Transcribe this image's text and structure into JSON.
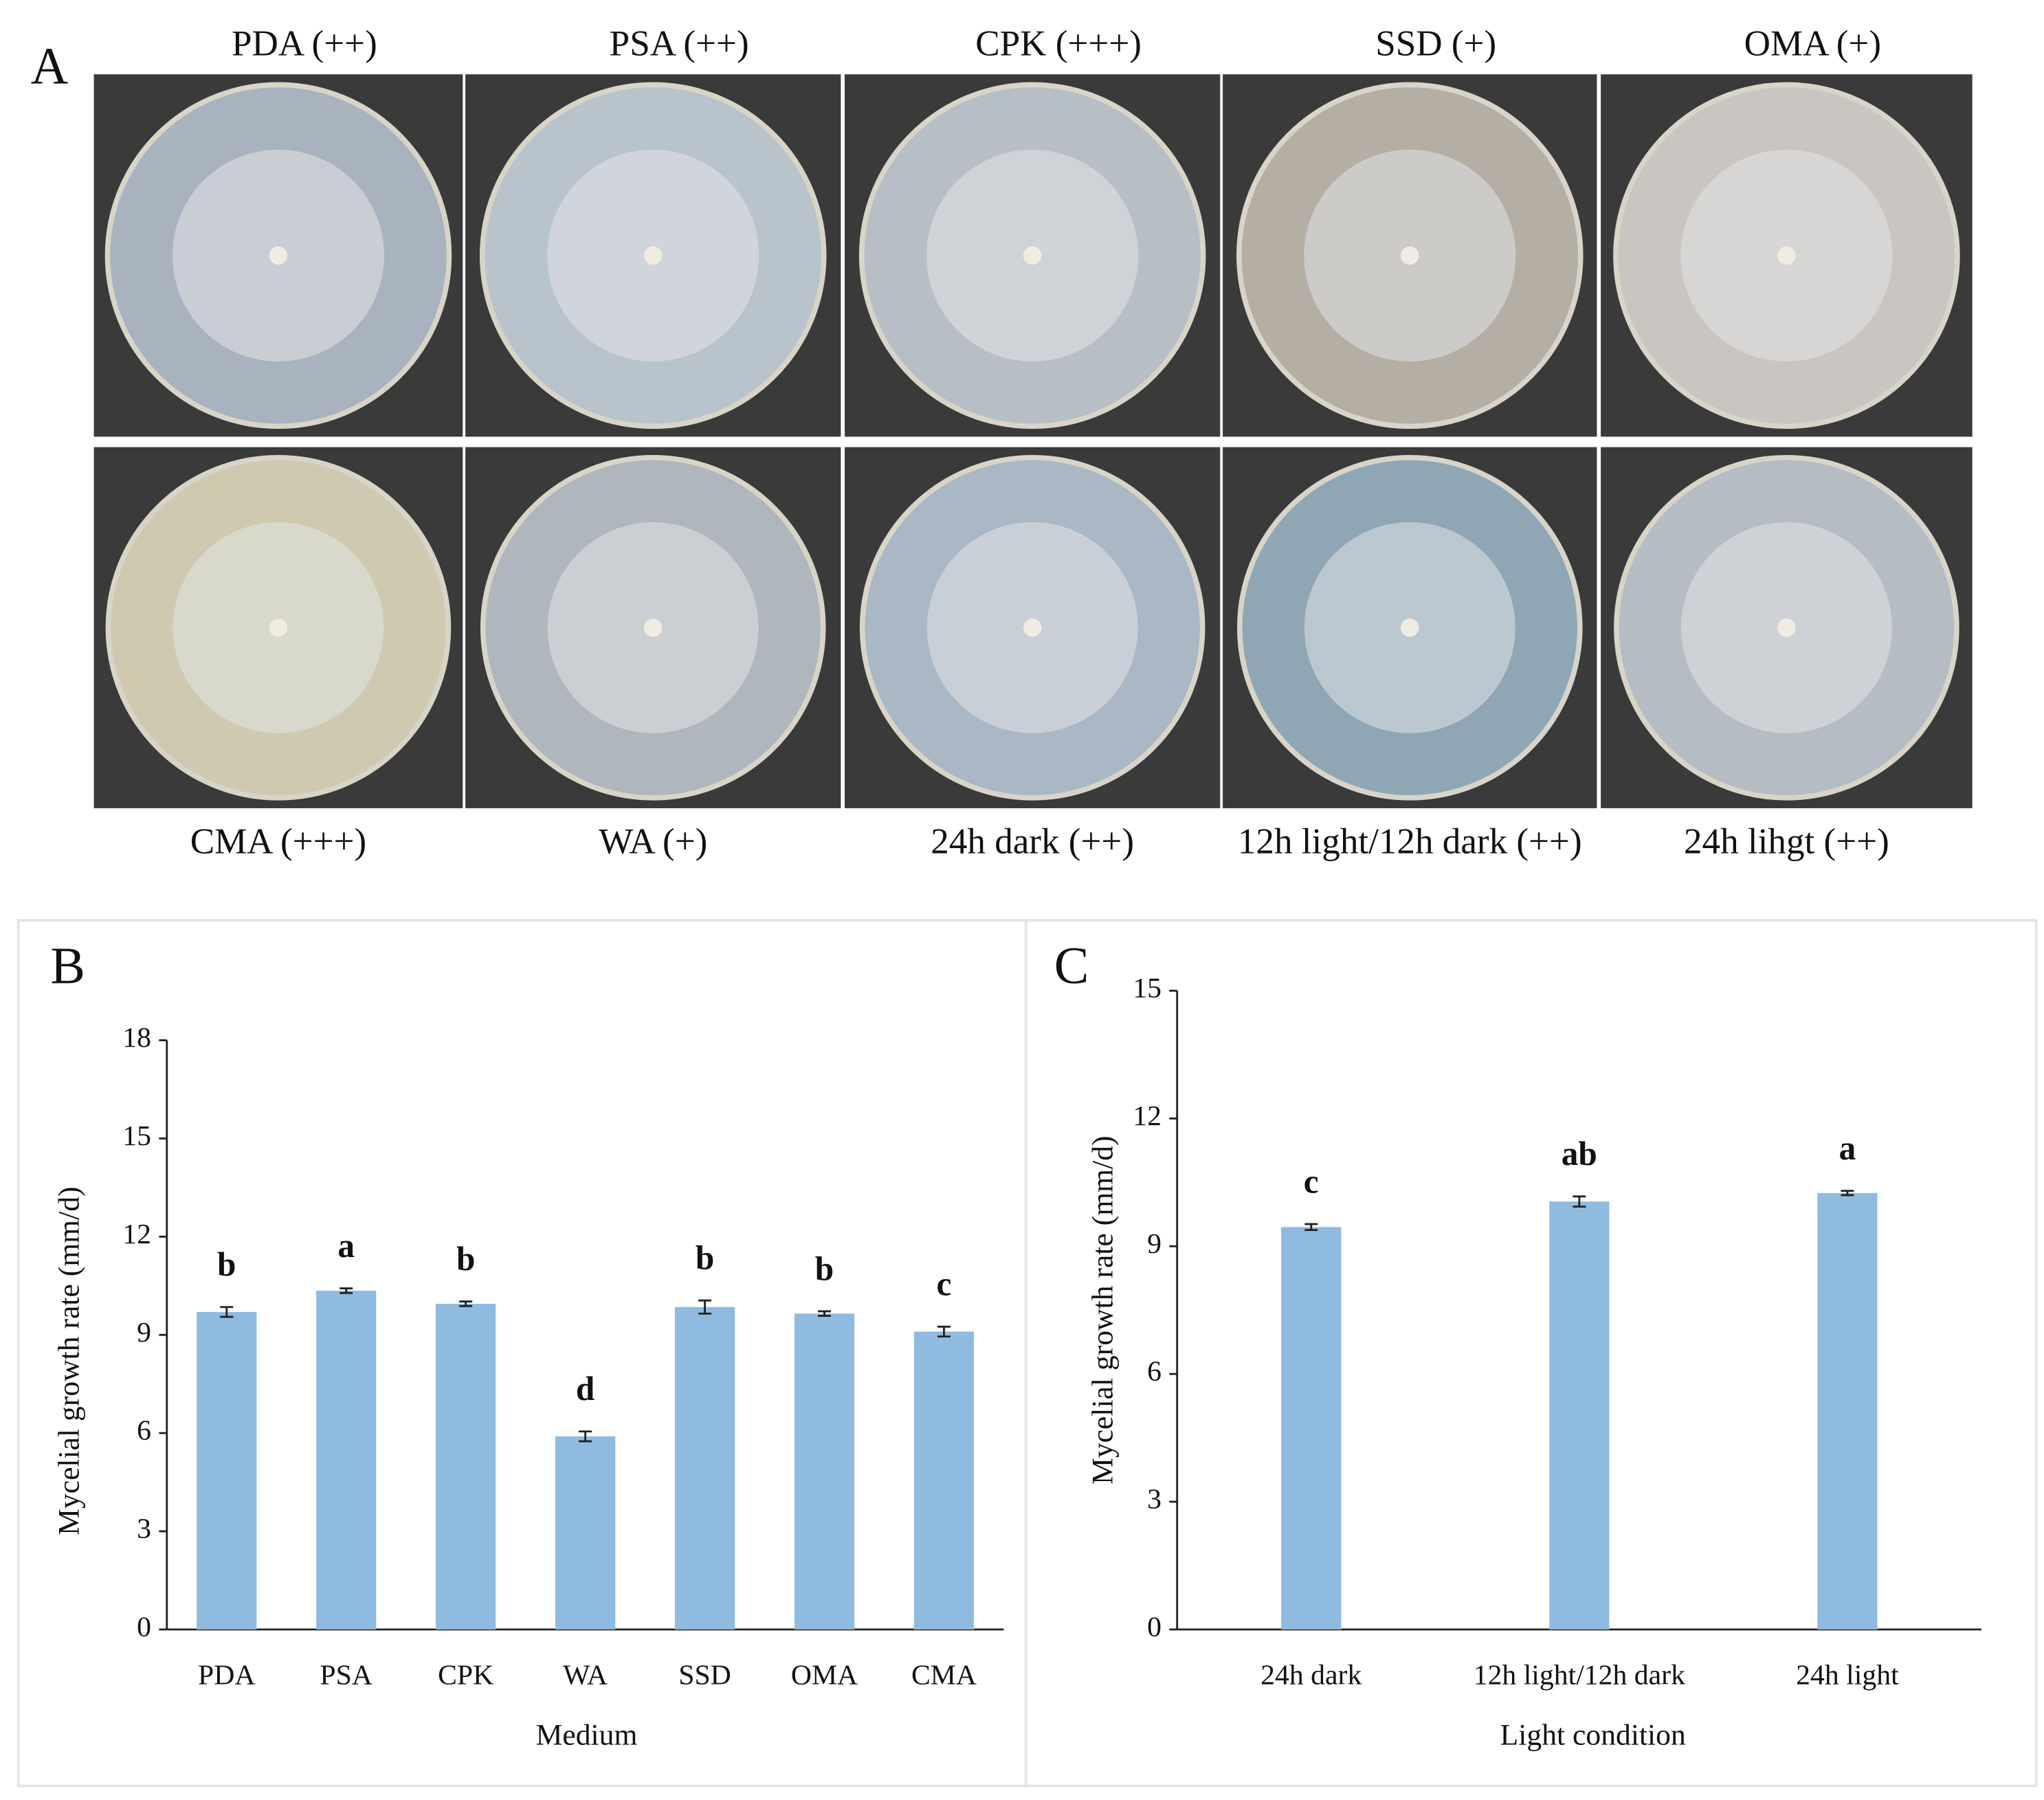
{
  "panel_a": {
    "label": "A",
    "top_labels": [
      "PDA (++)",
      "PSA (++)",
      "CPK (+++)",
      "SSD (+)",
      "OMA (+)"
    ],
    "bottom_labels": [
      "CMA (+++)",
      "WA (+)",
      "24h dark (++)",
      "12h light/12h dark (++)",
      "24h lihgt (++)"
    ]
  },
  "chart_data": [
    {
      "type": "bar",
      "label": "B",
      "x_label": "Medium",
      "y_label": "Mycelial growth rate (mm/d)",
      "categories": [
        "PDA",
        "PSA",
        "CPK",
        "WA",
        "SSD",
        "OMA",
        "CMA"
      ],
      "values": [
        9.7,
        10.35,
        9.95,
        5.9,
        9.85,
        9.65,
        9.1
      ],
      "errors": [
        0.15,
        0.07,
        0.07,
        0.15,
        0.2,
        0.07,
        0.15
      ],
      "letters": [
        "b",
        "a",
        "b",
        "d",
        "b",
        "b",
        "c"
      ],
      "color": "#8fbbe0",
      "ylim": [
        0,
        18
      ],
      "yticks": [
        0,
        3,
        6,
        9,
        12,
        15,
        18
      ]
    },
    {
      "type": "bar",
      "label": "C",
      "x_label": "Light condition",
      "y_label": "Mycelial growth rate (mm/d)",
      "categories": [
        "24h dark",
        "12h light/12h dark",
        "24h light"
      ],
      "values": [
        9.45,
        10.05,
        10.25
      ],
      "errors": [
        0.07,
        0.12,
        0.05
      ],
      "letters": [
        "c",
        "ab",
        "a"
      ],
      "color": "#8fbbe0",
      "ylim": [
        0,
        15
      ],
      "yticks": [
        0,
        3,
        6,
        9,
        12,
        15
      ]
    }
  ]
}
